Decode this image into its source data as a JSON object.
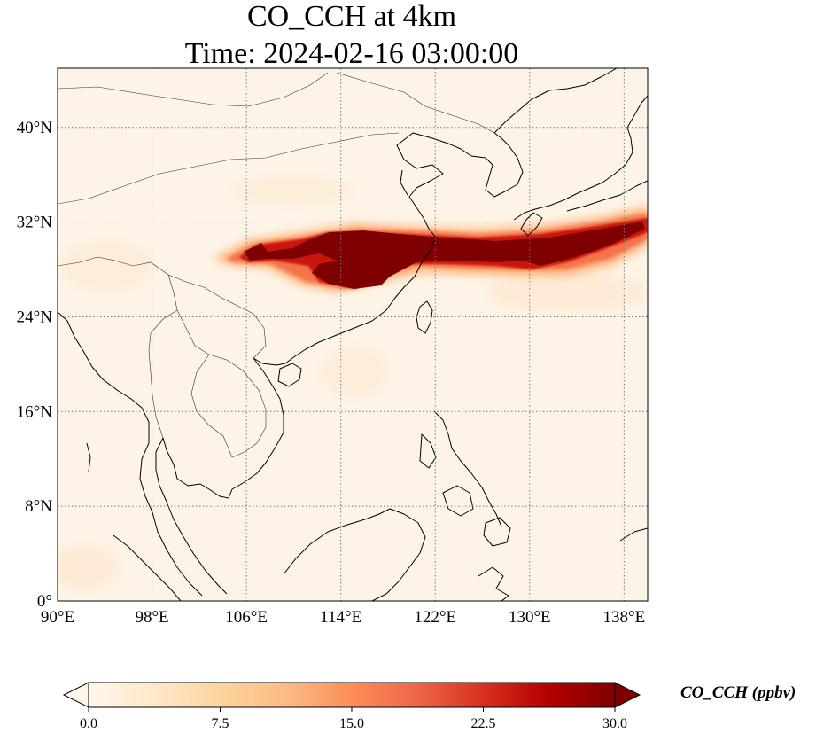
{
  "title": {
    "line1": "CO_CCH at 4km",
    "line2": "Time: 2024-02-16 03:00:00"
  },
  "map": {
    "projection": "PlateCarree",
    "lon_range": [
      90,
      140
    ],
    "lat_range": [
      0,
      45
    ],
    "gridlines": "dotted gray",
    "lon_ticks": [
      {
        "value": 90,
        "label": "90°E"
      },
      {
        "value": 98,
        "label": "98°E"
      },
      {
        "value": 106,
        "label": "106°E"
      },
      {
        "value": 114,
        "label": "114°E"
      },
      {
        "value": 122,
        "label": "122°E"
      },
      {
        "value": 130,
        "label": "130°E"
      },
      {
        "value": 138,
        "label": "138°E"
      }
    ],
    "lat_ticks": [
      {
        "value": 0,
        "label": "0°"
      },
      {
        "value": 8,
        "label": "8°N"
      },
      {
        "value": 16,
        "label": "16°N"
      },
      {
        "value": 24,
        "label": "24°N"
      },
      {
        "value": 32,
        "label": "32°N"
      },
      {
        "value": 40,
        "label": "40°N"
      }
    ],
    "background_color": "#fdf4e7",
    "plume_colors": [
      "#fee6c8",
      "#fdba85",
      "#f4734a",
      "#c9140c",
      "#7f0000"
    ]
  },
  "colorbar": {
    "label": "CO_CCH (ppbv)",
    "range": [
      0.0,
      30.0
    ],
    "ticks": [
      {
        "value": 0.0,
        "label": "0.0"
      },
      {
        "value": 7.5,
        "label": "7.5"
      },
      {
        "value": 15.0,
        "label": "15.0"
      },
      {
        "value": 22.5,
        "label": "22.5"
      },
      {
        "value": 30.0,
        "label": "30.0"
      }
    ],
    "colormap": "OrRd",
    "extend": "both",
    "stops": [
      "#fff7ec",
      "#fee8c8",
      "#fdd49e",
      "#fdbb84",
      "#fc8d59",
      "#ef6548",
      "#d7301f",
      "#b30000",
      "#7f0000"
    ]
  }
}
